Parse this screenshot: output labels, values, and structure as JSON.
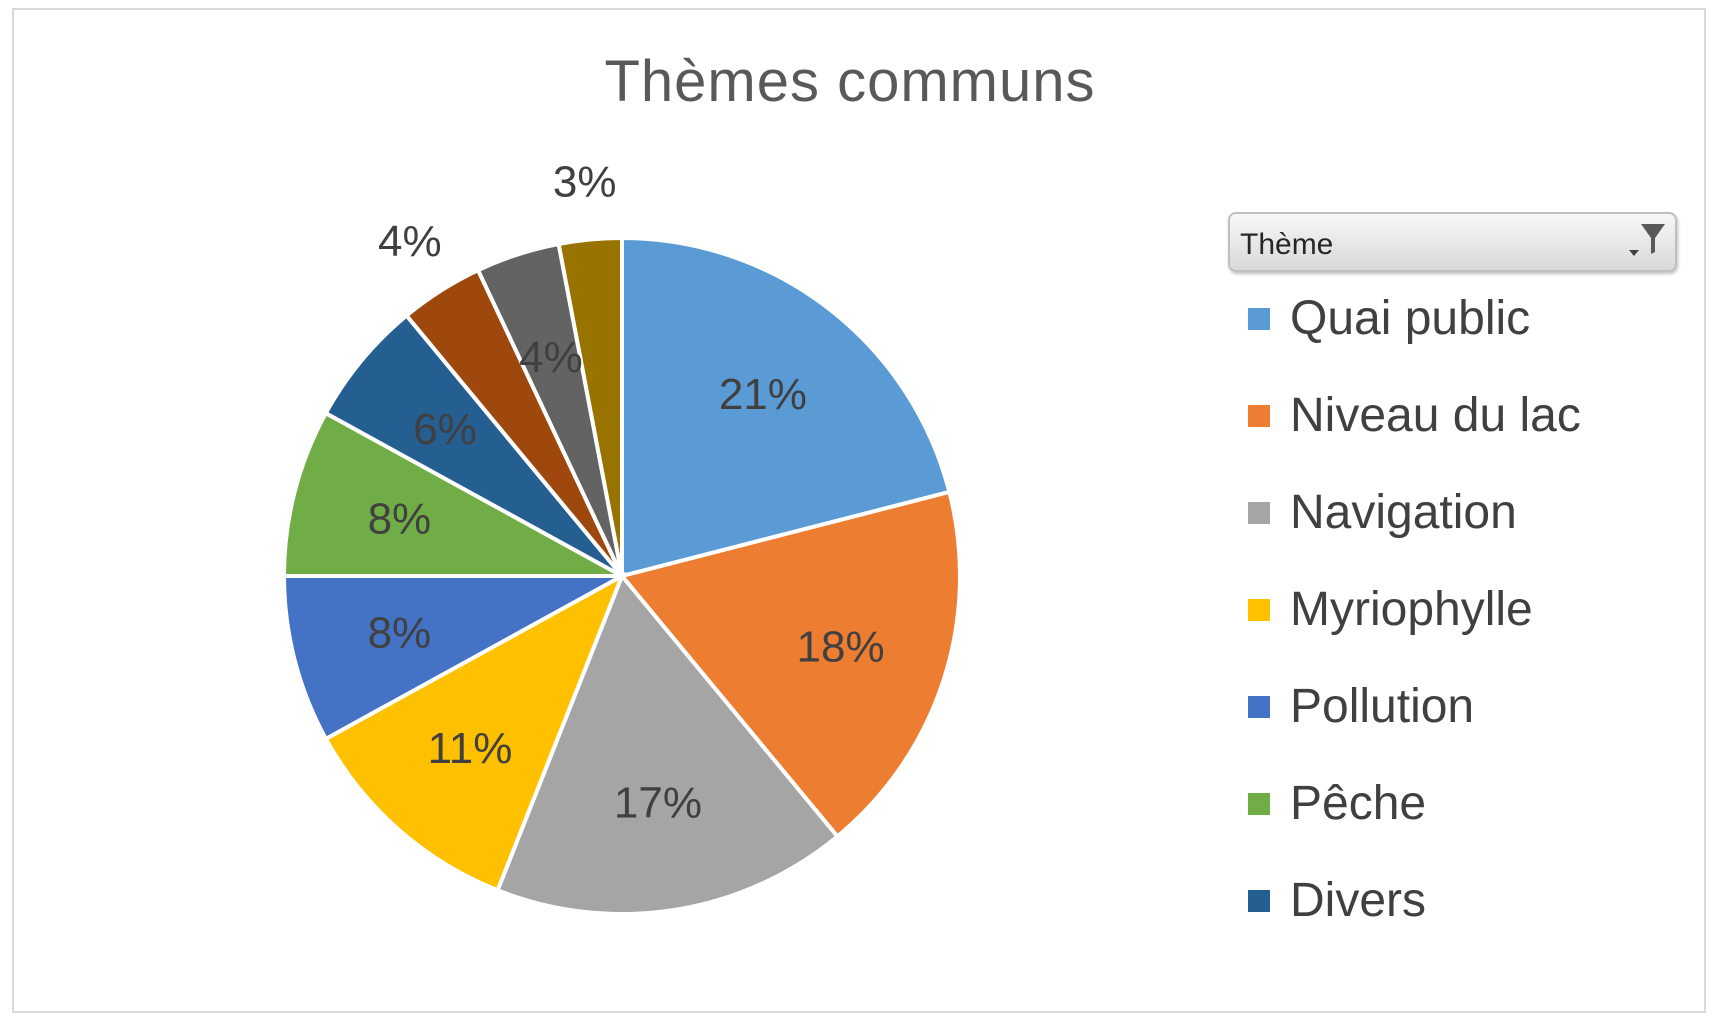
{
  "chart_data": {
    "type": "pie",
    "title": "Thèmes communs",
    "legend_title": "Thème",
    "legend_placement": "right",
    "slices": [
      {
        "name": "Quai public",
        "value": 21,
        "label": "21%",
        "color": "#5B9BD5",
        "label_color": "#404040"
      },
      {
        "name": "Niveau du lac",
        "value": 18,
        "label": "18%",
        "color": "#ED7D31",
        "label_color": "#404040"
      },
      {
        "name": "Navigation",
        "value": 17,
        "label": "17%",
        "color": "#A5A5A5",
        "label_color": "#404040"
      },
      {
        "name": "Myriophylle",
        "value": 11,
        "label": "11%",
        "color": "#FFC000",
        "label_color": "#404040"
      },
      {
        "name": "Pollution",
        "value": 8,
        "label": "8%",
        "color": "#4472C4",
        "label_color": "#404040"
      },
      {
        "name": "Pêche",
        "value": 8,
        "label": "8%",
        "color": "#70AD47",
        "label_color": "#404040"
      },
      {
        "name": "Divers",
        "value": 6,
        "label": "6%",
        "color": "#255E91",
        "label_color": "#404040"
      },
      {
        "name": "",
        "value": 4,
        "label": "4%",
        "color": "#9E480E",
        "label_color": "#404040",
        "label_outside": true
      },
      {
        "name": "",
        "value": 4,
        "label": "4%",
        "color": "#636363",
        "label_color": "#404040"
      },
      {
        "name": "",
        "value": 3,
        "label": "3%",
        "color": "#997300",
        "label_color": "#404040",
        "label_outside": true
      }
    ]
  }
}
